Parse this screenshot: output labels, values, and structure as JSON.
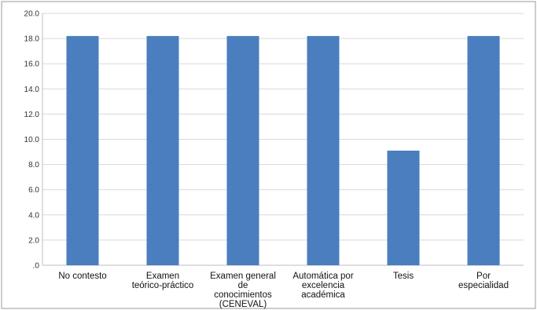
{
  "chart_data": {
    "type": "bar",
    "title": "",
    "xlabel": "",
    "ylabel": "",
    "categories": [
      "No contesto",
      "Examen teórico-práctico",
      "Examen general de conocimientos (CENEVAL)",
      "Automática por excelencia académica",
      "Tesis",
      "Por especialidad"
    ],
    "category_label_lines": [
      [
        "No contesto"
      ],
      [
        "Examen",
        "teórico-práctico"
      ],
      [
        "Examen general",
        "de",
        "conocimientos",
        "(CENEVAL)"
      ],
      [
        "Automática por",
        "excelencia",
        "académica"
      ],
      [
        "Tesis"
      ],
      [
        "Por",
        "especialidad"
      ]
    ],
    "series": [
      {
        "values": [
          18.2,
          18.2,
          18.2,
          18.2,
          9.1,
          18.2
        ]
      }
    ],
    "ylim": [
      0,
      20
    ],
    "yticks": [
      0,
      2,
      4,
      6,
      8,
      10,
      12,
      14,
      16,
      18,
      20
    ],
    "ytick_labels": [
      ".0",
      "2.0",
      "4.0",
      "6.0",
      "8.0",
      "10.0",
      "12.0",
      "14.0",
      "16.0",
      "18.0",
      "20.0"
    ],
    "grid": true,
    "bar_color": "#4a7ebf",
    "grid_color": "#d9d9d9"
  }
}
